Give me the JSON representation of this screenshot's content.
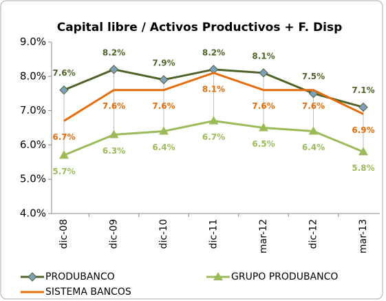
{
  "chart_data": {
    "type": "line",
    "title": "Capital libre / Activos Productivos + F. Disp",
    "categories": [
      "dic-08",
      "dic-09",
      "dic-10",
      "dic-11",
      "mar-12",
      "dic-12",
      "mar-13"
    ],
    "series": [
      {
        "name": "PRODUBANCO",
        "color": "#4f6228",
        "marker": "diamond",
        "marker_color": "#7f9fbf",
        "label_position": "above",
        "values": [
          7.6,
          8.2,
          7.9,
          8.2,
          8.1,
          7.5,
          7.1
        ],
        "value_labels": [
          "7.6%",
          "8.2%",
          "7.9%",
          "8.2%",
          "8.1%",
          "7.5%",
          "7.1%"
        ]
      },
      {
        "name": "GRUPO PRODUBANCO",
        "color": "#9bbb59",
        "marker": "triangle",
        "marker_color": "#9bbb59",
        "label_position": "below",
        "values": [
          5.7,
          6.3,
          6.4,
          6.7,
          6.5,
          6.4,
          5.8
        ],
        "value_labels": [
          "5.7%",
          "6.3%",
          "6.4%",
          "6.7%",
          "6.5%",
          "6.4%",
          "5.8%"
        ]
      },
      {
        "name": "SISTEMA BANCOS",
        "color": "#e46c0a",
        "marker": "none",
        "marker_color": "#e46c0a",
        "label_position": "below",
        "values": [
          6.7,
          7.6,
          7.6,
          8.1,
          7.6,
          7.6,
          6.9
        ],
        "value_labels": [
          "6.7%",
          "7.6%",
          "7.6%",
          "8.1%",
          "7.6%",
          "7.6%",
          "6.9%"
        ]
      }
    ],
    "ylim": [
      4,
      9
    ],
    "yticks": [
      {
        "value": 4,
        "label": "4.0%"
      },
      {
        "value": 5,
        "label": "5.0%"
      },
      {
        "value": 6,
        "label": "6.0%"
      },
      {
        "value": 7,
        "label": "7.0%"
      },
      {
        "value": 8,
        "label": "8.0%"
      },
      {
        "value": 9,
        "label": "9.0%"
      }
    ],
    "grid": false,
    "drop_lines": true,
    "legend": "bottom"
  }
}
